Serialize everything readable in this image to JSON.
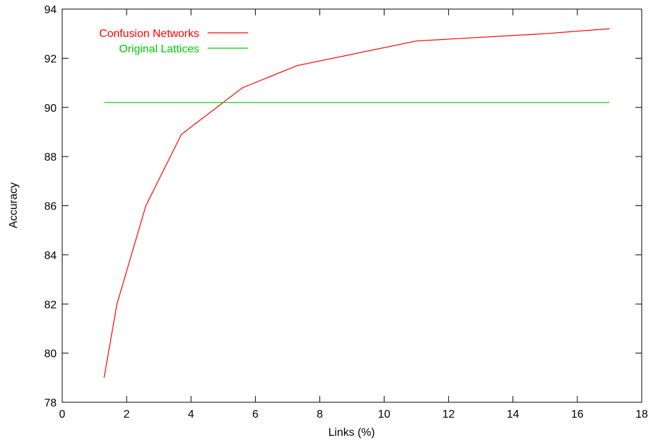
{
  "chart_data": {
    "type": "line",
    "xlabel": "Links (%)",
    "ylabel": "Accuracy",
    "xlim": [
      0,
      18
    ],
    "ylim": [
      78,
      94
    ],
    "xticks": [
      0,
      2,
      4,
      6,
      8,
      10,
      12,
      14,
      16,
      18
    ],
    "yticks": [
      78,
      80,
      82,
      84,
      86,
      88,
      90,
      92,
      94
    ],
    "grid": false,
    "legend_position": "top-left",
    "series": [
      {
        "name": "Confusion Networks",
        "color": "#ff0000",
        "x": [
          1.3,
          1.7,
          2.6,
          3.7,
          5.6,
          7.3,
          11.0,
          15.0,
          17.0
        ],
        "y": [
          79.0,
          82.0,
          86.0,
          88.9,
          90.8,
          91.7,
          92.7,
          93.0,
          93.2
        ]
      },
      {
        "name": "Original Lattices",
        "color": "#00cc00",
        "x": [
          1.3,
          17.0
        ],
        "y": [
          90.2,
          90.2
        ]
      }
    ]
  }
}
